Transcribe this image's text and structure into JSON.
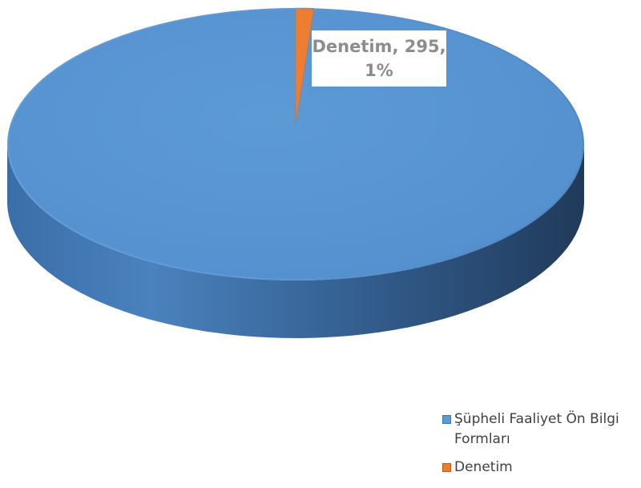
{
  "chart_data": {
    "type": "pie",
    "title": "",
    "categories": [
      "Şüpheli Faaliyet Ön Bilgi Formları",
      "Denetim"
    ],
    "values": [
      null,
      295
    ],
    "percentages": [
      99,
      1
    ],
    "legend_position": "bottom-right",
    "colors": [
      "#5b9bd5",
      "#ed7d31"
    ],
    "style": "3d",
    "data_labels": [
      {
        "category": "Denetim",
        "line1": "Denetim, 295,",
        "line2": "1%"
      }
    ]
  }
}
